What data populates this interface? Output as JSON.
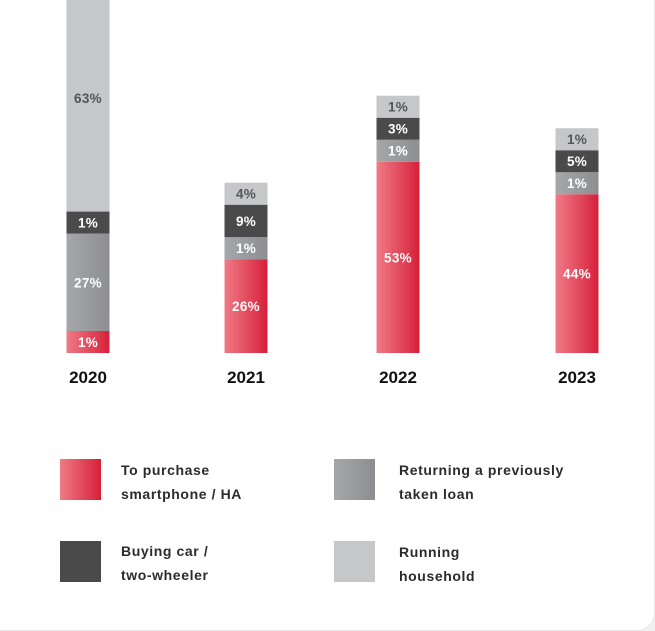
{
  "colors": {
    "smartphone": [
      "#ef7b86",
      "#d6203a"
    ],
    "car": "#4a4a4a",
    "loan": [
      "#a6a7aa",
      "#8d8e91"
    ],
    "household": "#c6c7c9"
  },
  "chart_data": {
    "type": "bar",
    "stacked": true,
    "categories": [
      "2020",
      "2021",
      "2022",
      "2023"
    ],
    "series": [
      {
        "key": "smartphone",
        "name": "To purchase smartphone / HA",
        "values": [
          1,
          26,
          53,
          44
        ],
        "labels": [
          "1%",
          "26%",
          "53%",
          "44%"
        ]
      },
      {
        "key": "loan",
        "name": "Returning a previously taken loan",
        "values": [
          27,
          1,
          1,
          1
        ],
        "labels": [
          "27%",
          "1%",
          "1%",
          "1%"
        ]
      },
      {
        "key": "car",
        "name": "Buying car / two-wheeler",
        "values": [
          1,
          9,
          3,
          5
        ],
        "labels": [
          "1%",
          "9%",
          "3%",
          "5%"
        ]
      },
      {
        "key": "household",
        "name": "Running household",
        "values": [
          63,
          4,
          1,
          1
        ],
        "labels": [
          "63%",
          "4%",
          "1%",
          "1%"
        ]
      }
    ]
  },
  "legend": [
    {
      "key": "smartphone",
      "line1": "To purchase",
      "line2": "smartphone / HA"
    },
    {
      "key": "loan",
      "line1": "Returning a previously",
      "line2": "taken loan"
    },
    {
      "key": "car",
      "line1": "Buying car /",
      "line2": "two-wheeler"
    },
    {
      "key": "household",
      "line1": "Running",
      "line2": "household"
    }
  ]
}
